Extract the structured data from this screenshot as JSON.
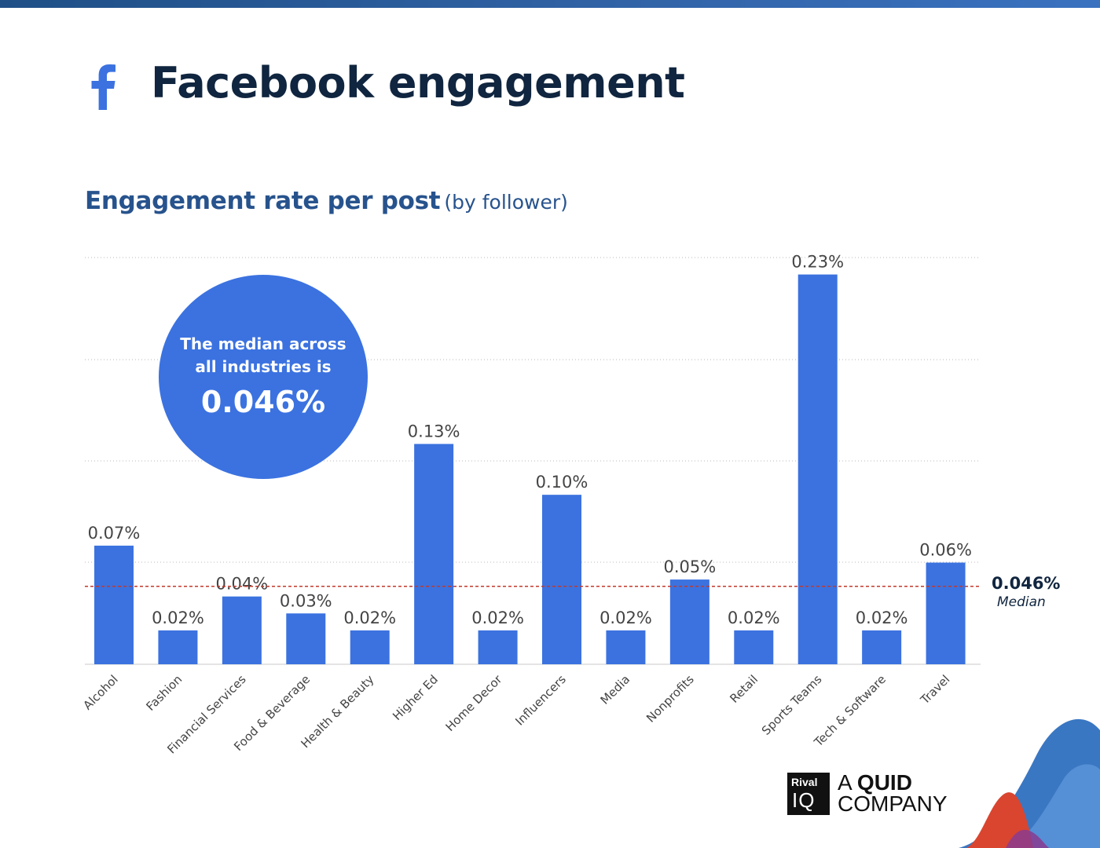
{
  "header": {
    "title": "Facebook engagement",
    "subtitle": "Engagement rate per post",
    "subtitle_note": "(by follower)",
    "icon": "facebook-icon"
  },
  "callout": {
    "line1": "The median across",
    "line2": "all industries is",
    "value": "0.046%"
  },
  "median_label": {
    "value": "0.046%",
    "label": "Median"
  },
  "brand": {
    "logo_top": "Rival",
    "logo_bottom": "IQ",
    "line1_prefix": "A",
    "line1_bold": "QUID",
    "line2": "COMPANY"
  },
  "colors": {
    "bar": "#3b72e0",
    "median_line": "#c0392b",
    "axis_text": "#444444",
    "title": "#10253f",
    "subtitle": "#27538d"
  },
  "chart_data": {
    "type": "bar",
    "categories": [
      "Alcohol",
      "Fashion",
      "Financial Services",
      "Food & Beverage",
      "Health & Beauty",
      "Higher Ed",
      "Home Decor",
      "Influencers",
      "Media",
      "Nonprofits",
      "Retail",
      "Sports Teams",
      "Tech & Software",
      "Travel"
    ],
    "values": [
      0.07,
      0.02,
      0.04,
      0.03,
      0.02,
      0.13,
      0.02,
      0.1,
      0.02,
      0.05,
      0.02,
      0.23,
      0.02,
      0.06
    ],
    "value_labels": [
      "0.07%",
      "0.02%",
      "0.04%",
      "0.03%",
      "0.02%",
      "0.13%",
      "0.02%",
      "0.10%",
      "0.02%",
      "0.05%",
      "0.02%",
      "0.23%",
      "0.02%",
      "0.06%"
    ],
    "median": 0.046,
    "ylim": [
      0,
      0.24
    ],
    "grid": true,
    "xlabel": "",
    "ylabel": ""
  }
}
